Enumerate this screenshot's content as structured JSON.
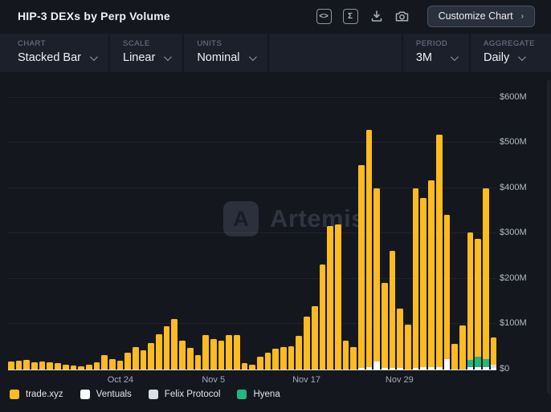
{
  "header": {
    "title": "HIP-3 DEXs by Perp Volume",
    "code_icon_glyph": "<>",
    "sigma_icon_glyph": "Σ",
    "customize_button": "Customize Chart",
    "customize_chevron": "›"
  },
  "toolbar": {
    "chart": {
      "label": "CHART",
      "value": "Stacked Bar"
    },
    "scale": {
      "label": "SCALE",
      "value": "Linear"
    },
    "units": {
      "label": "UNITS",
      "value": "Nominal"
    },
    "period": {
      "label": "PERIOD",
      "value": "3M"
    },
    "aggregate": {
      "label": "AGGREGATE",
      "value": "Daily"
    }
  },
  "watermark": {
    "logo_glyph": "A",
    "text": "Artemis"
  },
  "colors": {
    "background": "#14171e",
    "toolbar_background": "#1b202b",
    "trade_xyz": "#fbbb21",
    "ventuals": "#ffffff",
    "felix_protocol": "#d9dee9",
    "hyena": "#23b580",
    "axis_line": "#dfe3ea"
  },
  "chart_data": {
    "type": "bar",
    "stacked": true,
    "title": "HIP-3 DEXs by Perp Volume",
    "unit": "$M",
    "ylim": [
      0,
      640
    ],
    "grid": true,
    "legend_position": "bottom",
    "n_bars": 63,
    "aggregate": "Daily",
    "period": "3M",
    "y_ticks": [
      {
        "label": "$600M",
        "value": 600
      },
      {
        "label": "$500M",
        "value": 500
      },
      {
        "label": "$400M",
        "value": 400
      },
      {
        "label": "$300M",
        "value": 300
      },
      {
        "label": "$200M",
        "value": 200
      },
      {
        "label": "$100M",
        "value": 100
      },
      {
        "label": "$0",
        "value": 0
      }
    ],
    "x_ticks": [
      {
        "label": "Oct 24",
        "index": 14
      },
      {
        "label": "Nov 5",
        "index": 26
      },
      {
        "label": "Nov 17",
        "index": 38
      },
      {
        "label": "Nov 29",
        "index": 50
      }
    ],
    "totals": [
      17,
      19,
      22,
      16,
      18,
      16,
      15,
      11,
      8,
      7,
      11,
      16,
      32,
      23,
      20,
      37,
      50,
      43,
      58,
      78,
      96,
      112,
      64,
      47,
      31,
      76,
      67,
      64,
      76,
      76,
      14,
      11,
      28,
      37,
      46,
      49,
      52,
      75,
      117,
      140,
      232,
      317,
      320,
      64,
      49,
      450,
      529,
      400,
      191,
      261,
      134,
      99,
      399,
      378,
      418,
      518,
      341,
      57,
      97,
      302,
      288,
      400,
      70
    ],
    "stack_order_bottom_to_top": [
      "ventuals",
      "felix",
      "hyena",
      "trade"
    ],
    "series": [
      {
        "key": "trade",
        "name": "trade.xyz",
        "color": "#fbbb21",
        "values": [
          17,
          19,
          22,
          16,
          18,
          16,
          15,
          11,
          8,
          7,
          11,
          16,
          32,
          23,
          20,
          37,
          50,
          43,
          58,
          78,
          96,
          112,
          64,
          47,
          31,
          76,
          67,
          64,
          76,
          76,
          14,
          11,
          28,
          37,
          46,
          49,
          52,
          75,
          117,
          140,
          232,
          317,
          320,
          64,
          49,
          446,
          524,
          382,
          187,
          257,
          131,
          99,
          395,
          373,
          413,
          512,
          318,
          57,
          97,
          281,
          260,
          377,
          59
        ]
      },
      {
        "key": "ventuals",
        "name": "Ventuals",
        "color": "#ffffff",
        "values": [
          0,
          0,
          0,
          0,
          0,
          0,
          0,
          0,
          0,
          0,
          0,
          0,
          0,
          0,
          0,
          0,
          0,
          0,
          0,
          0,
          0,
          0,
          0,
          0,
          0,
          0,
          0,
          0,
          0,
          0,
          0,
          0,
          0,
          0,
          0,
          0,
          0,
          0,
          0,
          0,
          0,
          0,
          0,
          0,
          0,
          4,
          5,
          18,
          4,
          4,
          3,
          0,
          4,
          5,
          5,
          6,
          23,
          0,
          0,
          5,
          5,
          5,
          3
        ]
      },
      {
        "key": "felix",
        "name": "Felix Protocol",
        "color": "#d9dee9",
        "values": [
          0,
          0,
          0,
          0,
          0,
          0,
          0,
          0,
          0,
          0,
          0,
          0,
          0,
          0,
          0,
          0,
          0,
          0,
          0,
          0,
          0,
          0,
          0,
          0,
          0,
          0,
          0,
          0,
          0,
          0,
          0,
          0,
          0,
          0,
          0,
          0,
          0,
          0,
          0,
          0,
          0,
          0,
          0,
          0,
          0,
          0,
          0,
          0,
          0,
          0,
          0,
          0,
          0,
          0,
          0,
          0,
          0,
          0,
          0,
          0,
          0,
          0,
          8
        ]
      },
      {
        "key": "hyena",
        "name": "Hyena",
        "color": "#23b580",
        "values": [
          0,
          0,
          0,
          0,
          0,
          0,
          0,
          0,
          0,
          0,
          0,
          0,
          0,
          0,
          0,
          0,
          0,
          0,
          0,
          0,
          0,
          0,
          0,
          0,
          0,
          0,
          0,
          0,
          0,
          0,
          0,
          0,
          0,
          0,
          0,
          0,
          0,
          0,
          0,
          0,
          0,
          0,
          0,
          0,
          0,
          0,
          0,
          0,
          0,
          0,
          0,
          0,
          0,
          0,
          0,
          0,
          0,
          0,
          0,
          16,
          23,
          18,
          0
        ]
      }
    ]
  }
}
